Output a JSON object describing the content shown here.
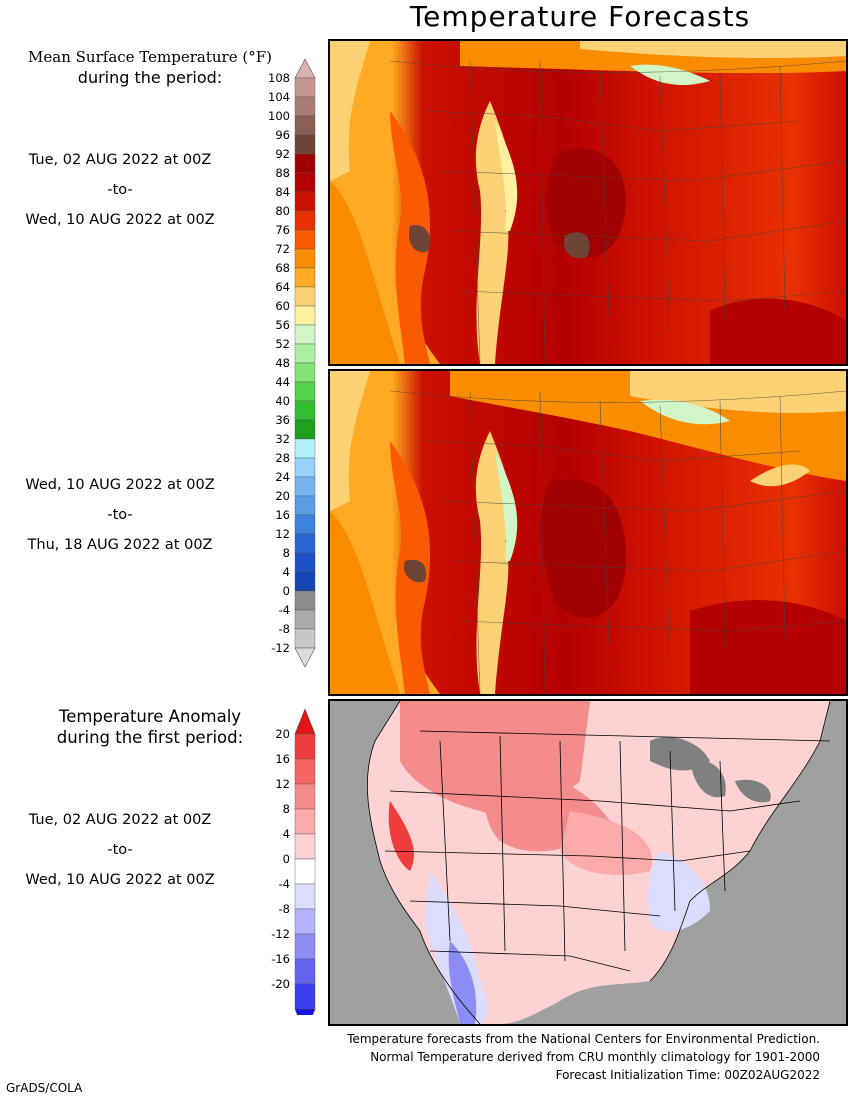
{
  "title": "Temperature Forecasts",
  "mean_header": {
    "line1": "Mean Surface Temperature (°F)",
    "line2": "during the period:"
  },
  "period1": {
    "start": "Tue, 02 AUG 2022 at 00Z",
    "sep": "-to-",
    "end": "Wed, 10 AUG 2022 at 00Z"
  },
  "period2": {
    "start": "Wed, 10 AUG 2022 at 00Z",
    "sep": "-to-",
    "end": "Thu, 18 AUG 2022 at 00Z"
  },
  "anomaly_header": {
    "line1": "Temperature Anomaly",
    "line2": "during the first period:"
  },
  "period3": {
    "start": "Tue, 02 AUG 2022 at 00Z",
    "sep": "-to-",
    "end": "Wed, 10 AUG 2022 at 00Z"
  },
  "temp_scale": {
    "labels": [
      "108",
      "104",
      "100",
      "96",
      "92",
      "88",
      "84",
      "80",
      "76",
      "72",
      "68",
      "64",
      "60",
      "56",
      "52",
      "48",
      "44",
      "40",
      "36",
      "32",
      "28",
      "24",
      "20",
      "16",
      "12",
      "8",
      "4",
      "0",
      "-4",
      "-8",
      "-12"
    ],
    "colors": [
      "#d8b4b0",
      "#c39790",
      "#a87c74",
      "#8c5f56",
      "#6e4436",
      "#a00000",
      "#b40000",
      "#cc1000",
      "#e83000",
      "#fa5a00",
      "#fa8c00",
      "#ffaa22",
      "#fcd274",
      "#fff0a0",
      "#d2f5c8",
      "#aaf0a0",
      "#82e278",
      "#55d24f",
      "#32be32",
      "#1ea01e",
      "#b4f0fa",
      "#96d2fa",
      "#78b4f0",
      "#5a9be6",
      "#3c82e1",
      "#2864d2",
      "#1e50c8",
      "#1446b4",
      "#8c8c8c",
      "#aaaaaa",
      "#c8c8c8",
      "#dcdcdc"
    ]
  },
  "anomaly_scale": {
    "labels": [
      "20",
      "16",
      "12",
      "8",
      "4",
      "0",
      "-4",
      "-8",
      "-12",
      "-16",
      "-20"
    ],
    "colors": [
      "#e11414",
      "#f03c3c",
      "#f56464",
      "#f58c8c",
      "#faaaaa",
      "#fcd2d2",
      "#ffffff",
      "#dcdcff",
      "#b4b4fa",
      "#8c8cf5",
      "#6464f0",
      "#3c3cf0",
      "#1414e6"
    ]
  },
  "footer": {
    "line1": "Temperature forecasts from the National Centers for Environmental Prediction.",
    "line2": "Normal Temperature derived from CRU monthly climatology for 1901-2000",
    "line3": "Forecast Initialization Time: 00Z02AUG2022"
  },
  "credit": "GrADS/COLA"
}
